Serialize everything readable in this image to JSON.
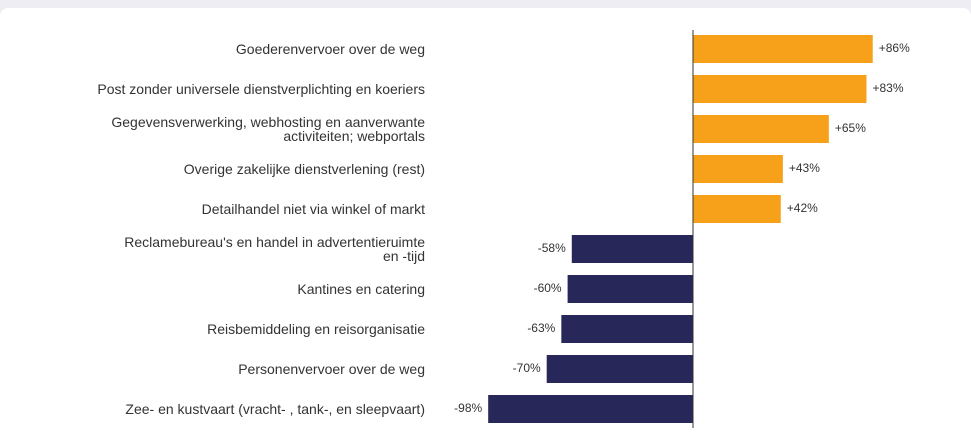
{
  "chart_data": {
    "type": "bar",
    "orientation": "horizontal",
    "categories": [
      "Goederenvervoer over de weg",
      "Post zonder universele dienstverplichting en koeriers",
      "Gegevensverwerking, webhosting en aanverwante\nactiviteiten; webportals",
      "Overige zakelijke dienstverlening (rest)",
      "Detailhandel niet via winkel of markt",
      "Reclamebureau's en handel in advertentieruimte\nen -tijd",
      "Kantines en catering",
      "Reisbemiddeling en reisorganisatie",
      "Personenvervoer over de weg",
      "Zee- en kustvaart (vracht- , tank-, en sleepvaart)"
    ],
    "values": [
      86,
      83,
      65,
      43,
      42,
      -58,
      -60,
      -63,
      -70,
      -98
    ],
    "value_labels": [
      "+86%",
      "+83%",
      "+65%",
      "+43%",
      "+42%",
      "-58%",
      "-60%",
      "-63%",
      "-70%",
      "-98%"
    ],
    "positive_color": "#f7a11b",
    "negative_color": "#28275a",
    "xlim": [
      -100,
      100
    ]
  }
}
